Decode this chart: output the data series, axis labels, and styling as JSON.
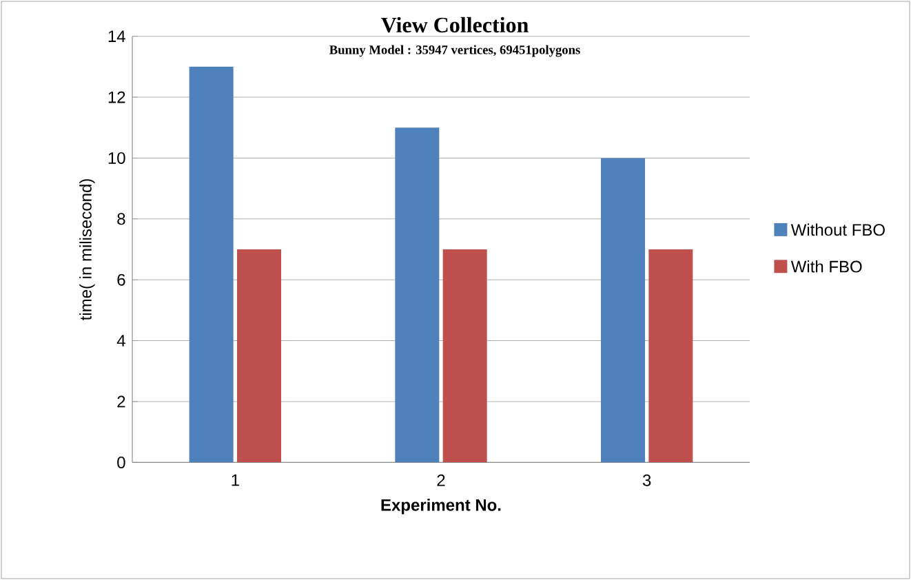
{
  "chart_data": {
    "type": "bar",
    "title": "View Collection",
    "subtitle": "Bunny Model : 35947 vertices, 69451polygons",
    "xlabel": "Experiment No.",
    "ylabel": "time( in milisecond)",
    "categories": [
      "1",
      "2",
      "3"
    ],
    "series": [
      {
        "name": "Without FBO",
        "color": "#4f81bd",
        "values": [
          13,
          11,
          10
        ]
      },
      {
        "name": "With FBO",
        "color": "#c0504d",
        "values": [
          7,
          7,
          7
        ]
      }
    ],
    "ylim": [
      0,
      14
    ],
    "yticks": [
      0,
      2,
      4,
      6,
      8,
      10,
      12,
      14
    ],
    "grid": "y",
    "legend": "right"
  }
}
